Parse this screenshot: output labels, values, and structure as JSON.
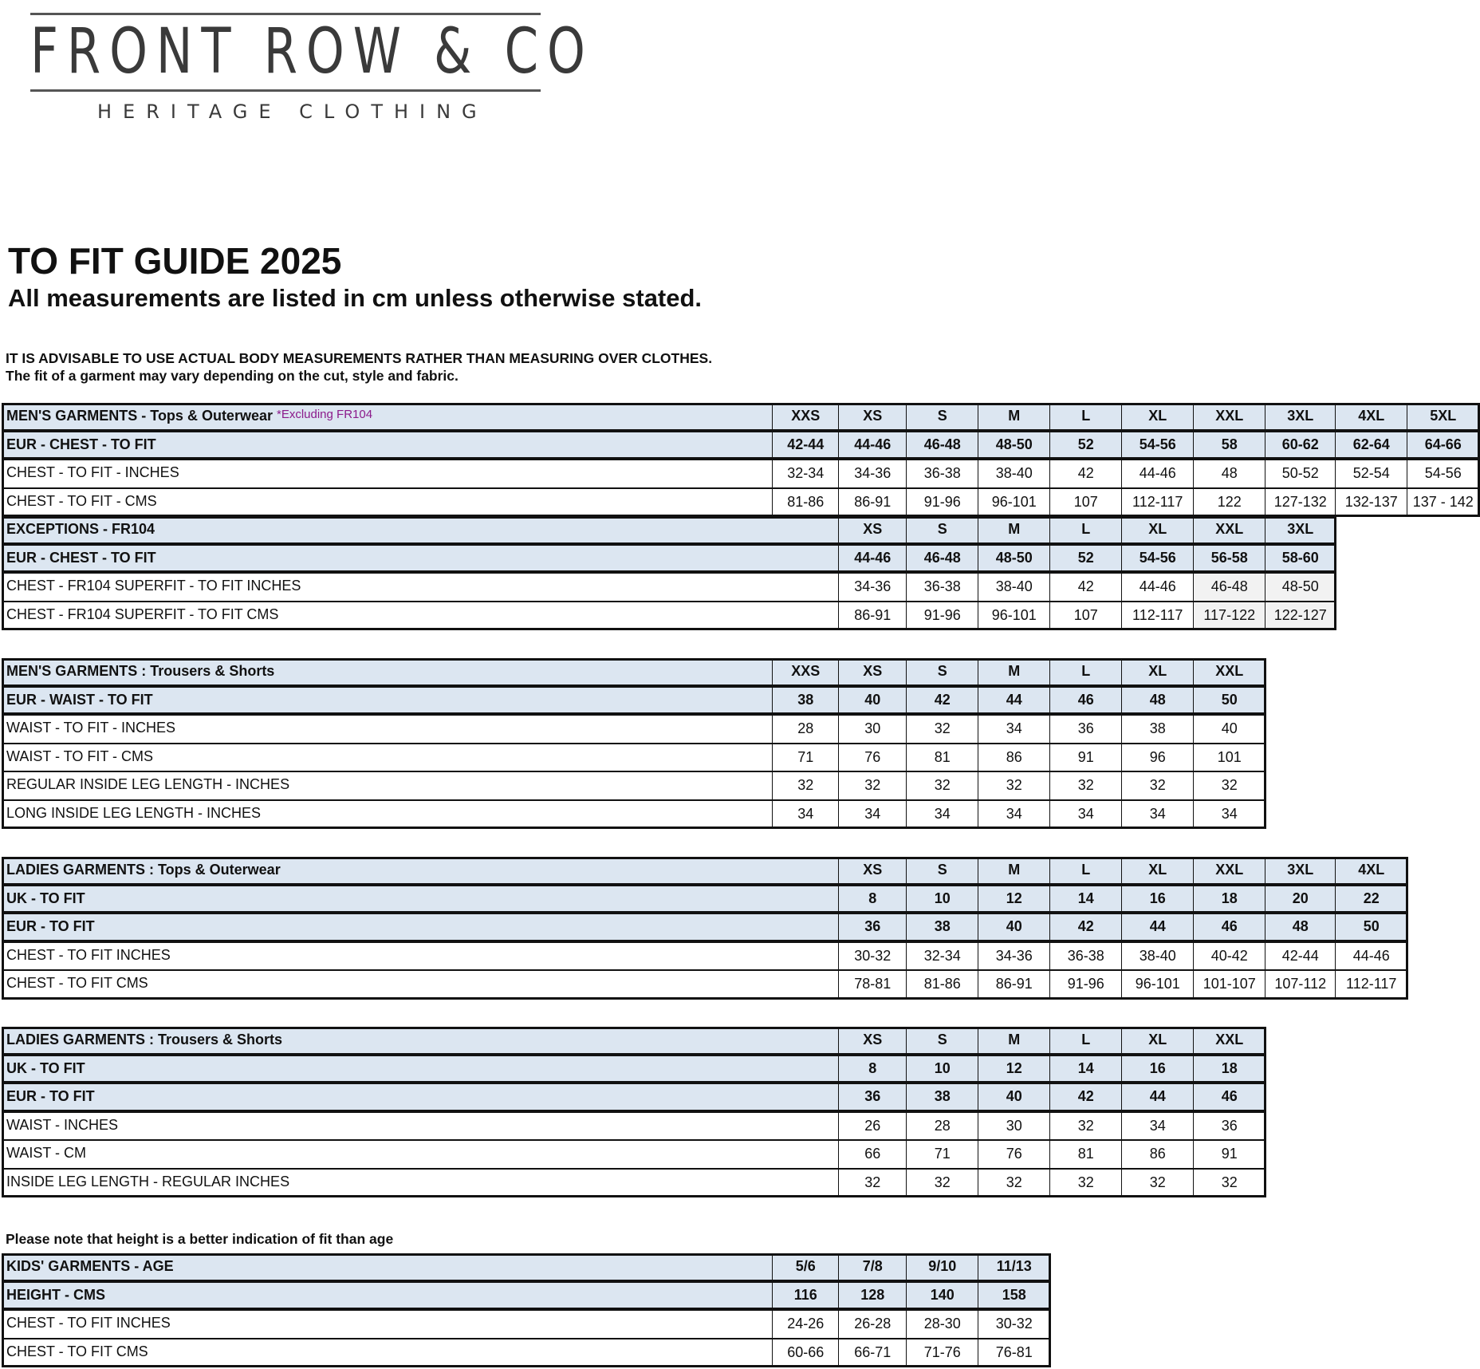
{
  "logo": {
    "brand": "FRONT ROW & CO",
    "tagline": "HERITAGE CLOTHING"
  },
  "header": {
    "title": "TO FIT GUIDE 2025",
    "subtitle": "All measurements are listed in cm unless otherwise stated.",
    "advice_1": "IT IS ADVISABLE TO USE ACTUAL BODY MEASUREMENTS RATHER THAN MEASURING OVER CLOTHES.",
    "advice_2": "The fit of a garment may vary depending on the cut, style and fabric."
  },
  "colors": {
    "header_fill": "#dce6f1",
    "highlight_fill": "#f2f2f2",
    "note_purple": "#8b1a8b",
    "border": "#111111"
  },
  "kids_note": "Please note that height is a better indication of fit than age",
  "tables": [
    {
      "id": "mens-tops",
      "rows": [
        {
          "label": "MEN'S GARMENTS - Tops & Outerwear",
          "note": "*Excluding FR104",
          "style": "shade",
          "start": 0,
          "cells": [
            "XXS",
            "XS",
            "S",
            "M",
            "L",
            "XL",
            "XXL",
            "3XL",
            "4XL",
            "5XL"
          ]
        },
        {
          "label": "EUR - CHEST - TO FIT",
          "style": "shade",
          "start": 0,
          "cells": [
            "42-44",
            "44-46",
            "46-48",
            "48-50",
            "52",
            "54-56",
            "58",
            "60-62",
            "62-64",
            "64-66"
          ]
        },
        {
          "label": "CHEST - TO FIT - INCHES",
          "style": "plain",
          "start": 0,
          "cells": [
            "32-34",
            "34-36",
            "36-38",
            "38-40",
            "42",
            "44-46",
            "48",
            "50-52",
            "52-54",
            "54-56"
          ]
        },
        {
          "label": "CHEST - TO FIT - CMS",
          "style": "plain",
          "start": 0,
          "cells": [
            "81-86",
            "86-91",
            "91-96",
            "96-101",
            "107",
            "112-117",
            "122",
            "127-132",
            "132-137",
            "137 - 142"
          ]
        }
      ]
    },
    {
      "id": "exceptions",
      "rows": [
        {
          "label": "EXCEPTIONS - FR104",
          "style": "shade",
          "start": 1,
          "cells": [
            "XS",
            "S",
            "M",
            "L",
            "XL",
            "XXL",
            "3XL"
          ]
        },
        {
          "label": "EUR - CHEST - TO FIT",
          "style": "shade",
          "start": 1,
          "cells": [
            "44-46",
            "46-48",
            "48-50",
            "52",
            "54-56",
            "56-58",
            "58-60"
          ]
        },
        {
          "label": "CHEST - FR104 SUPERFIT - TO FIT INCHES",
          "style": "plain",
          "start": 1,
          "gray_from": 5,
          "cells": [
            "34-36",
            "36-38",
            "38-40",
            "42",
            "44-46",
            "46-48",
            "48-50"
          ]
        },
        {
          "label": "CHEST - FR104 SUPERFIT - TO FIT CMS",
          "style": "plain",
          "start": 1,
          "gray_from": 5,
          "cells": [
            "86-91",
            "91-96",
            "96-101",
            "107",
            "112-117",
            "117-122",
            "122-127"
          ]
        }
      ]
    },
    {
      "id": "mens-trousers",
      "rows": [
        {
          "label": "MEN'S GARMENTS : Trousers & Shorts",
          "style": "shade",
          "start": 0,
          "cells": [
            "XXS",
            "XS",
            "S",
            "M",
            "L",
            "XL",
            "XXL"
          ]
        },
        {
          "label": "EUR - WAIST - TO FIT",
          "style": "shade",
          "start": 0,
          "cells": [
            "38",
            "40",
            "42",
            "44",
            "46",
            "48",
            "50"
          ]
        },
        {
          "label": "WAIST - TO FIT - INCHES",
          "style": "plain",
          "start": 0,
          "cells": [
            "28",
            "30",
            "32",
            "34",
            "36",
            "38",
            "40"
          ]
        },
        {
          "label": "WAIST - TO FIT - CMS",
          "style": "plain",
          "start": 0,
          "cells": [
            "71",
            "76",
            "81",
            "86",
            "91",
            "96",
            "101"
          ]
        },
        {
          "label": "REGULAR INSIDE LEG LENGTH - INCHES",
          "style": "plain",
          "start": 0,
          "cells": [
            "32",
            "32",
            "32",
            "32",
            "32",
            "32",
            "32"
          ]
        },
        {
          "label": "LONG INSIDE LEG LENGTH - INCHES",
          "style": "plain",
          "start": 0,
          "cells": [
            "34",
            "34",
            "34",
            "34",
            "34",
            "34",
            "34"
          ]
        }
      ]
    },
    {
      "id": "ladies-tops",
      "rows": [
        {
          "label": "LADIES GARMENTS : Tops & Outerwear",
          "style": "shade",
          "start": 1,
          "cells": [
            "XS",
            "S",
            "M",
            "L",
            "XL",
            "XXL",
            "3XL",
            "4XL"
          ]
        },
        {
          "label": "UK - TO FIT",
          "style": "shade",
          "start": 1,
          "cells": [
            "8",
            "10",
            "12",
            "14",
            "16",
            "18",
            "20",
            "22"
          ]
        },
        {
          "label": "EUR - TO FIT",
          "style": "shade",
          "start": 1,
          "cells": [
            "36",
            "38",
            "40",
            "42",
            "44",
            "46",
            "48",
            "50"
          ]
        },
        {
          "label": "CHEST - TO FIT INCHES",
          "style": "plain",
          "start": 1,
          "cells": [
            "30-32",
            "32-34",
            "34-36",
            "36-38",
            "38-40",
            "40-42",
            "42-44",
            "44-46"
          ]
        },
        {
          "label": "CHEST - TO FIT CMS",
          "style": "plain",
          "start": 1,
          "cells": [
            "78-81",
            "81-86",
            "86-91",
            "91-96",
            "96-101",
            "101-107",
            "107-112",
            "112-117"
          ]
        }
      ]
    },
    {
      "id": "ladies-trousers",
      "rows": [
        {
          "label": "LADIES GARMENTS : Trousers & Shorts",
          "style": "shade",
          "start": 1,
          "cells": [
            "XS",
            "S",
            "M",
            "L",
            "XL",
            "XXL"
          ]
        },
        {
          "label": "UK - TO FIT",
          "style": "shade",
          "start": 1,
          "cells": [
            "8",
            "10",
            "12",
            "14",
            "16",
            "18"
          ]
        },
        {
          "label": "EUR - TO FIT",
          "style": "shade",
          "start": 1,
          "cells": [
            "36",
            "38",
            "40",
            "42",
            "44",
            "46"
          ]
        },
        {
          "label": "WAIST - INCHES",
          "style": "plain",
          "start": 1,
          "cells": [
            "26",
            "28",
            "30",
            "32",
            "34",
            "36"
          ]
        },
        {
          "label": "WAIST - CM",
          "style": "plain",
          "start": 1,
          "cells": [
            "66",
            "71",
            "76",
            "81",
            "86",
            "91"
          ]
        },
        {
          "label": "INSIDE LEG LENGTH - REGULAR INCHES",
          "style": "plain",
          "start": 1,
          "cells": [
            "32",
            "32",
            "32",
            "32",
            "32",
            "32"
          ]
        }
      ]
    },
    {
      "id": "kids",
      "rows": [
        {
          "label": "KIDS' GARMENTS - AGE",
          "style": "shade",
          "start": 0,
          "cells": [
            "5/6",
            "7/8",
            "9/10",
            "11/13"
          ]
        },
        {
          "label": "HEIGHT - CMS",
          "style": "shade",
          "start": 0,
          "cells": [
            "116",
            "128",
            "140",
            "158"
          ]
        },
        {
          "label": "CHEST - TO FIT INCHES",
          "style": "plain",
          "start": 0,
          "cells": [
            "24-26",
            "26-28",
            "28-30",
            "30-32"
          ]
        },
        {
          "label": "CHEST - TO FIT CMS",
          "style": "plain",
          "start": 0,
          "cells": [
            "60-66",
            "66-71",
            "71-76",
            "76-81"
          ]
        }
      ]
    }
  ]
}
